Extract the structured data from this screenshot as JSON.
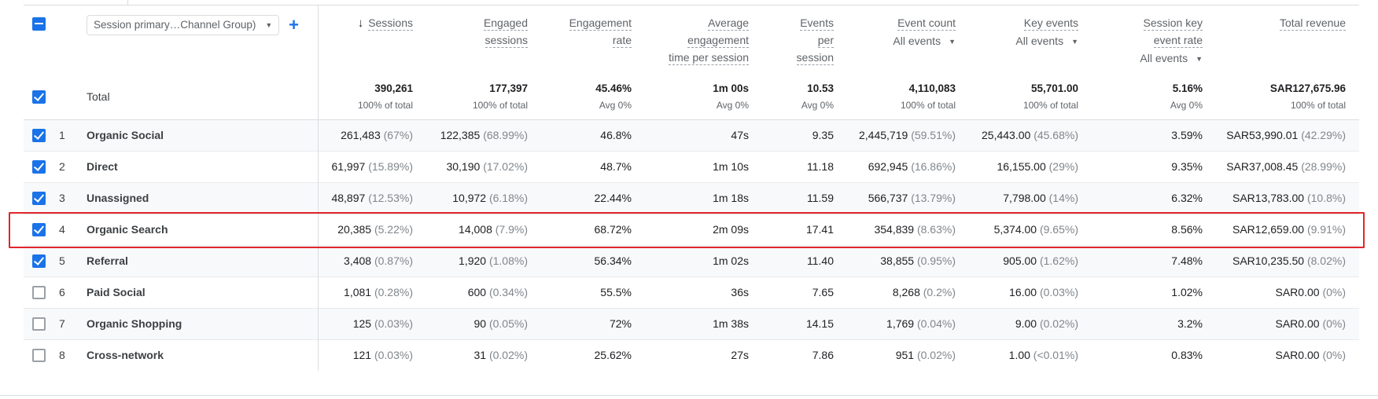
{
  "dimension": {
    "label": "Session primary…Channel Group)",
    "add_icon": "plus-icon"
  },
  "sort_icon": "arrow-down-icon",
  "columns": [
    {
      "key": "sessions",
      "lines": [
        "Sessions"
      ],
      "sorted": true
    },
    {
      "key": "engaged_sessions",
      "lines": [
        "Engaged",
        "sessions"
      ]
    },
    {
      "key": "engagement_rate",
      "lines": [
        "Engagement",
        "rate"
      ]
    },
    {
      "key": "avg_engagement_time",
      "lines": [
        "Average",
        "engagement",
        "time per session"
      ]
    },
    {
      "key": "events_per_session",
      "lines": [
        "Events",
        "per",
        "session"
      ]
    },
    {
      "key": "event_count",
      "lines": [
        "Event count"
      ],
      "dropdown": "All events"
    },
    {
      "key": "key_events",
      "lines": [
        "Key events"
      ],
      "dropdown": "All events"
    },
    {
      "key": "session_key_event_rate",
      "lines": [
        "Session key",
        "event rate"
      ],
      "dropdown": "All events"
    },
    {
      "key": "total_revenue",
      "lines": [
        "Total revenue"
      ]
    }
  ],
  "totals": {
    "label": "Total",
    "checked": true,
    "values": [
      [
        "390,261",
        "100% of total"
      ],
      [
        "177,397",
        "100% of total"
      ],
      [
        "45.46%",
        "Avg 0%"
      ],
      [
        "1m 00s",
        "Avg 0%"
      ],
      [
        "10.53",
        "Avg 0%"
      ],
      [
        "4,110,083",
        "100% of total"
      ],
      [
        "55,701.00",
        "100% of total"
      ],
      [
        "5.16%",
        "Avg 0%"
      ],
      [
        "SAR127,675.96",
        "100% of total"
      ]
    ]
  },
  "header_checkbox": "indeterminate",
  "rows": [
    {
      "n": "1",
      "label": "Organic Social",
      "checked": true,
      "values": [
        [
          "261,483",
          "(67%)"
        ],
        [
          "122,385",
          "(68.99%)"
        ],
        [
          "46.8%",
          ""
        ],
        [
          "47s",
          ""
        ],
        [
          "9.35",
          ""
        ],
        [
          "2,445,719",
          "(59.51%)"
        ],
        [
          "25,443.00",
          "(45.68%)"
        ],
        [
          "3.59%",
          ""
        ],
        [
          "SAR53,990.01",
          "(42.29%)"
        ]
      ]
    },
    {
      "n": "2",
      "label": "Direct",
      "checked": true,
      "values": [
        [
          "61,997",
          "(15.89%)"
        ],
        [
          "30,190",
          "(17.02%)"
        ],
        [
          "48.7%",
          ""
        ],
        [
          "1m 10s",
          ""
        ],
        [
          "11.18",
          ""
        ],
        [
          "692,945",
          "(16.86%)"
        ],
        [
          "16,155.00",
          "(29%)"
        ],
        [
          "9.35%",
          ""
        ],
        [
          "SAR37,008.45",
          "(28.99%)"
        ]
      ]
    },
    {
      "n": "3",
      "label": "Unassigned",
      "checked": true,
      "values": [
        [
          "48,897",
          "(12.53%)"
        ],
        [
          "10,972",
          "(6.18%)"
        ],
        [
          "22.44%",
          ""
        ],
        [
          "1m 18s",
          ""
        ],
        [
          "11.59",
          ""
        ],
        [
          "566,737",
          "(13.79%)"
        ],
        [
          "7,798.00",
          "(14%)"
        ],
        [
          "6.32%",
          ""
        ],
        [
          "SAR13,783.00",
          "(10.8%)"
        ]
      ]
    },
    {
      "n": "4",
      "label": "Organic Search",
      "checked": true,
      "highlighted": true,
      "values": [
        [
          "20,385",
          "(5.22%)"
        ],
        [
          "14,008",
          "(7.9%)"
        ],
        [
          "68.72%",
          ""
        ],
        [
          "2m 09s",
          ""
        ],
        [
          "17.41",
          ""
        ],
        [
          "354,839",
          "(8.63%)"
        ],
        [
          "5,374.00",
          "(9.65%)"
        ],
        [
          "8.56%",
          ""
        ],
        [
          "SAR12,659.00",
          "(9.91%)"
        ]
      ]
    },
    {
      "n": "5",
      "label": "Referral",
      "checked": true,
      "values": [
        [
          "3,408",
          "(0.87%)"
        ],
        [
          "1,920",
          "(1.08%)"
        ],
        [
          "56.34%",
          ""
        ],
        [
          "1m 02s",
          ""
        ],
        [
          "11.40",
          ""
        ],
        [
          "38,855",
          "(0.95%)"
        ],
        [
          "905.00",
          "(1.62%)"
        ],
        [
          "7.48%",
          ""
        ],
        [
          "SAR10,235.50",
          "(8.02%)"
        ]
      ]
    },
    {
      "n": "6",
      "label": "Paid Social",
      "checked": false,
      "values": [
        [
          "1,081",
          "(0.28%)"
        ],
        [
          "600",
          "(0.34%)"
        ],
        [
          "55.5%",
          ""
        ],
        [
          "36s",
          ""
        ],
        [
          "7.65",
          ""
        ],
        [
          "8,268",
          "(0.2%)"
        ],
        [
          "16.00",
          "(0.03%)"
        ],
        [
          "1.02%",
          ""
        ],
        [
          "SAR0.00",
          "(0%)"
        ]
      ]
    },
    {
      "n": "7",
      "label": "Organic Shopping",
      "checked": false,
      "values": [
        [
          "125",
          "(0.03%)"
        ],
        [
          "90",
          "(0.05%)"
        ],
        [
          "72%",
          ""
        ],
        [
          "1m 38s",
          ""
        ],
        [
          "14.15",
          ""
        ],
        [
          "1,769",
          "(0.04%)"
        ],
        [
          "9.00",
          "(0.02%)"
        ],
        [
          "3.2%",
          ""
        ],
        [
          "SAR0.00",
          "(0%)"
        ]
      ]
    },
    {
      "n": "8",
      "label": "Cross-network",
      "checked": false,
      "values": [
        [
          "121",
          "(0.03%)"
        ],
        [
          "31",
          "(0.02%)"
        ],
        [
          "25.62%",
          ""
        ],
        [
          "27s",
          ""
        ],
        [
          "7.86",
          ""
        ],
        [
          "951",
          "(0.02%)"
        ],
        [
          "1.00",
          "(<0.01%)"
        ],
        [
          "0.83%",
          ""
        ],
        [
          "SAR0.00",
          "(0%)"
        ]
      ]
    }
  ],
  "colors": {
    "accent": "#1a73e8",
    "highlight_border": "#e0262a",
    "row_shade": "#f8f9fa"
  }
}
